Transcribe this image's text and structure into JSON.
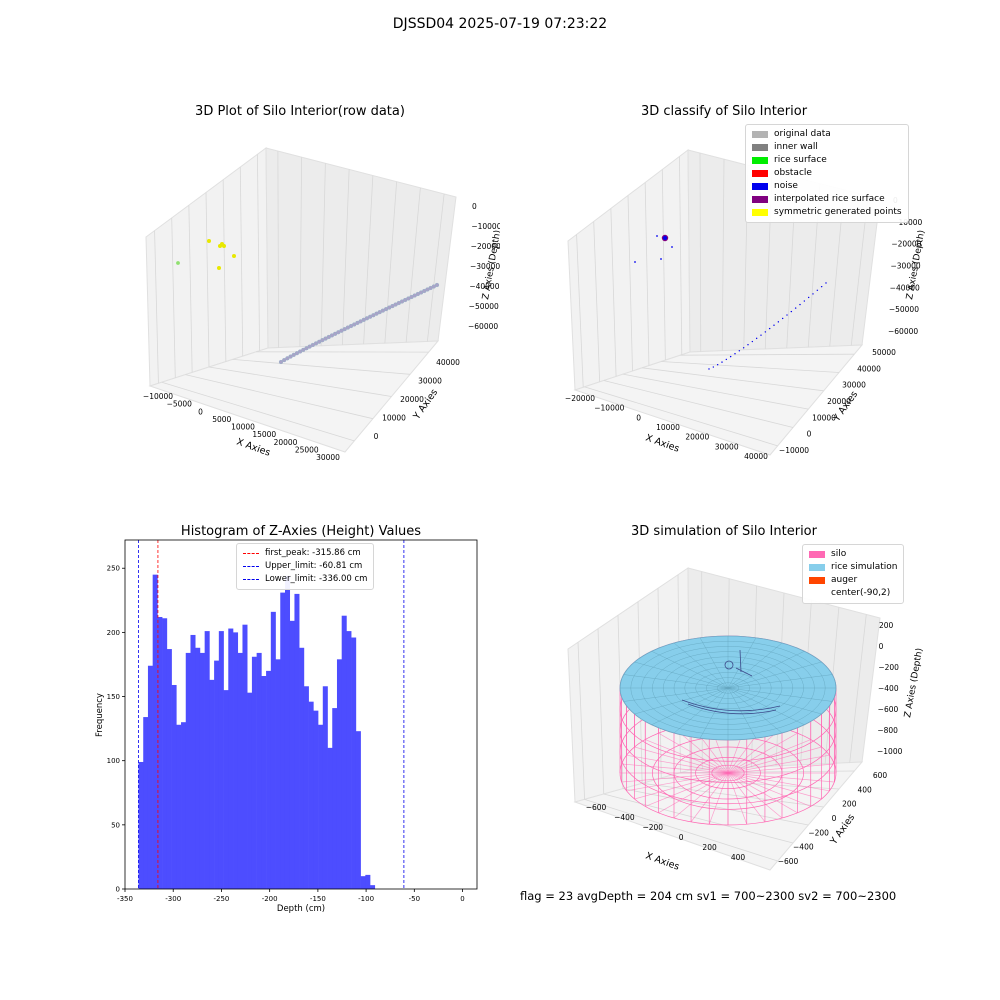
{
  "figure": {
    "title": "DJSSD04 2025-07-19 07:23:22"
  },
  "footer": {
    "text": "flag = 23  avgDepth = 204 cm  sv1 = 700~2300  sv2 = 700~2300"
  },
  "chart_data": [
    {
      "type": "scatter",
      "title": "3D Plot of Silo Interior(row data)",
      "xlabel": "X Axies",
      "ylabel": "Y Axies",
      "zlabel": "Z Axies (Depth)",
      "x_ticks": [
        "−10000",
        "−5000",
        "0",
        "5000",
        "10000",
        "15000",
        "20000",
        "25000",
        "30000"
      ],
      "y_ticks": [
        "0",
        "10000",
        "20000",
        "30000",
        "40000"
      ],
      "z_ticks": [
        "0",
        "−10000",
        "−20000",
        "−30000",
        "−40000",
        "−50000",
        "−60000"
      ],
      "series": [
        {
          "color": "#a9a3c8",
          "description": "main arc of points",
          "x": [
            25000,
            22000,
            19000,
            16000,
            13000,
            10000,
            7000,
            4000,
            1000
          ],
          "y": [
            35000,
            31000,
            27000,
            23000,
            19000,
            15000,
            11000,
            7000,
            3000
          ],
          "z": [
            -40000,
            -43000,
            -46000,
            -49000,
            -52000,
            -55000,
            -58000,
            -61000,
            -64000
          ]
        },
        {
          "color": "#e8e800",
          "description": "yellow points"
        },
        {
          "color": "#90e070",
          "description": "green point"
        }
      ]
    },
    {
      "type": "scatter",
      "title": "3D classify of Silo Interior",
      "xlabel": "X Axies",
      "ylabel": "Y Axies",
      "zlabel": "Z Axies (Depth)",
      "x_ticks": [
        "−20000",
        "−10000",
        "0",
        "10000",
        "20000",
        "30000",
        "40000"
      ],
      "y_ticks": [
        "−10000",
        "0",
        "10000",
        "20000",
        "30000",
        "40000",
        "50000"
      ],
      "z_ticks": [
        "0",
        "−10000",
        "−20000",
        "−30000",
        "−40000",
        "−50000",
        "−60000"
      ],
      "legend": [
        {
          "label": "original data",
          "color": "#b3b3b3"
        },
        {
          "label": "inner wall",
          "color": "#808080"
        },
        {
          "label": "rice surface",
          "color": "#00ee00"
        },
        {
          "label": "obstacle",
          "color": "#ff0000"
        },
        {
          "label": "noise",
          "color": "#0000ee"
        },
        {
          "label": "interpolated rice surface",
          "color": "#800080"
        },
        {
          "label": "symmetric generated points",
          "color": "#ffff00"
        }
      ],
      "legend_position": "top-right"
    },
    {
      "type": "bar",
      "title": "Histogram of Z-Axies (Height) Values",
      "xlabel": "Depth (cm)",
      "ylabel": "Frequency",
      "xlim": [
        -350,
        15
      ],
      "ylim": [
        0,
        272
      ],
      "x_ticks": [
        -350,
        -300,
        -250,
        -200,
        -150,
        -100,
        -50,
        0
      ],
      "y_ticks": [
        0,
        50,
        100,
        150,
        200,
        250
      ],
      "bar_color": "#4d4dff",
      "bin_start": -336,
      "bin_width": 4.9,
      "values": [
        99,
        134,
        174,
        245,
        212,
        211,
        187,
        159,
        128,
        130,
        184,
        198,
        188,
        184,
        201,
        163,
        178,
        201,
        155,
        203,
        200,
        184,
        206,
        153,
        181,
        184,
        166,
        170,
        216,
        179,
        231,
        244,
        209,
        230,
        188,
        158,
        146,
        139,
        128,
        158,
        110,
        141,
        179,
        213,
        201,
        196,
        123,
        10,
        11,
        3
      ],
      "vlines": [
        {
          "x": -315.86,
          "color": "#ff0000",
          "label": "first_peak: -315.86 cm"
        },
        {
          "x": -60.81,
          "color": "#0000ee",
          "label": "Upper_limit: -60.81 cm"
        },
        {
          "x": -336.0,
          "color": "#0000ee",
          "label": "Lower_limit: -336.00 cm"
        }
      ],
      "legend_position": "top-center"
    },
    {
      "type": "surface",
      "title": "3D simulation of Silo Interior",
      "xlabel": "X Axies",
      "ylabel": "Y Axies",
      "zlabel": "Z Axies (Depth)",
      "x_ticks": [
        "−600",
        "−400",
        "−200",
        "0",
        "200",
        "400"
      ],
      "y_ticks": [
        "−600",
        "−400",
        "−200",
        "0",
        "200",
        "400",
        "600"
      ],
      "z_ticks": [
        "200",
        "0",
        "−200",
        "−400",
        "−600",
        "−800",
        "−1000"
      ],
      "legend": [
        {
          "label": "silo",
          "color": "#ff69b4"
        },
        {
          "label": "rice simulation",
          "color": "#87ceeb"
        },
        {
          "label": "auger",
          "color": "#ff4500"
        },
        {
          "label": "center(-90,2)",
          "color": "none"
        }
      ],
      "legend_position": "top-right"
    }
  ]
}
